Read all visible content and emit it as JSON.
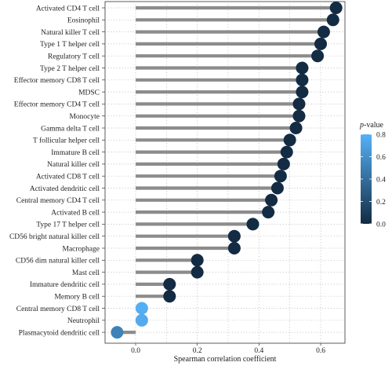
{
  "chart_data": {
    "type": "lollipop",
    "xlabel": "Spearman correlation coefficient",
    "xlim": [
      -0.07,
      0.67
    ],
    "xticks": [
      "0.0",
      "0.2",
      "0.4",
      "0.6"
    ],
    "xtick_values": [
      0.0,
      0.2,
      0.4,
      0.6
    ],
    "grid": true,
    "categories": [
      "Activated CD4 T cell",
      "Eosinophil",
      "Natural killer T cell",
      "Type 1 T helper cell",
      "Regulatory T cell",
      "Type 2 T helper cell",
      "Effector memory CD8 T cell",
      "MDSC",
      "Effector memory CD4 T cell",
      "Monocyte",
      "Gamma delta T cell",
      "T follicular helper cell",
      "Immature B cell",
      "Natural killer cell",
      "Activated CD8 T cell",
      "Activated dendritic cell",
      "Central memory CD4 T cell",
      "Activated B cell",
      "Type 17 T helper cell",
      "CD56 bright natural killer cell",
      "Macrophage",
      "CD56 dim natural killer cell",
      "Mast cell",
      "Immature dendritic cell",
      "Memory B cell",
      "Central memory CD8 T cell",
      "Neutrophil",
      "Plasmacytoid dendritic cell"
    ],
    "values": [
      0.65,
      0.64,
      0.61,
      0.6,
      0.59,
      0.54,
      0.54,
      0.54,
      0.53,
      0.53,
      0.52,
      0.5,
      0.49,
      0.48,
      0.47,
      0.46,
      0.44,
      0.43,
      0.38,
      0.32,
      0.32,
      0.2,
      0.2,
      0.11,
      0.11,
      0.02,
      0.02,
      -0.06
    ],
    "pvalues": [
      0.0,
      0.0,
      0.0,
      0.0,
      0.0,
      0.0,
      0.0,
      0.0,
      0.0,
      0.0,
      0.0,
      0.0,
      0.0,
      0.0,
      0.0,
      0.0,
      0.0,
      0.0,
      0.0,
      0.0,
      0.0,
      0.0,
      0.0,
      0.0,
      0.0,
      0.78,
      0.76,
      0.52
    ],
    "legend": {
      "title_italic": "p",
      "title_rest": "-value",
      "ticks": [
        "0.0",
        "0.2",
        "0.4",
        "0.6",
        "0.8"
      ],
      "tick_values": [
        0.0,
        0.2,
        0.4,
        0.6,
        0.8
      ],
      "range": [
        0.0,
        0.8
      ],
      "position": "right"
    },
    "colors": {
      "stem": "#8c8c8c",
      "low": "#132b43",
      "high": "#56b1f7",
      "grid": "#b8b8b8"
    }
  }
}
